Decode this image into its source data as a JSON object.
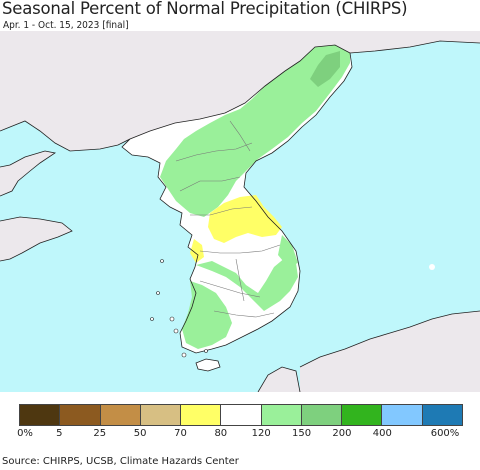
{
  "header": {
    "title": "Seasonal Percent of Normal Precipitation (CHIRPS)",
    "subtitle": "Apr. 1 - Oct. 15, 2023 [final]"
  },
  "map": {
    "colors": {
      "ocean": "#bff7fb",
      "foreign_land": "#ece8ec",
      "wet": "#9af09a",
      "wetter": "#7ed07e",
      "normal": "#ffffff",
      "dry": "#ffff66"
    }
  },
  "legend": {
    "colors": [
      "#4e3710",
      "#8c5a20",
      "#c38e46",
      "#d7bf83",
      "#ffff66",
      "#ffffff",
      "#9af09a",
      "#7ed07e",
      "#32b41e",
      "#82c8ff",
      "#1e7ab4"
    ],
    "labels": [
      "0%",
      "5",
      "25",
      "50",
      "70",
      "80",
      "120",
      "150",
      "200",
      "400",
      "600%"
    ]
  },
  "footer": {
    "source": "Source: CHIRPS, UCSB, Climate Hazards Center"
  }
}
